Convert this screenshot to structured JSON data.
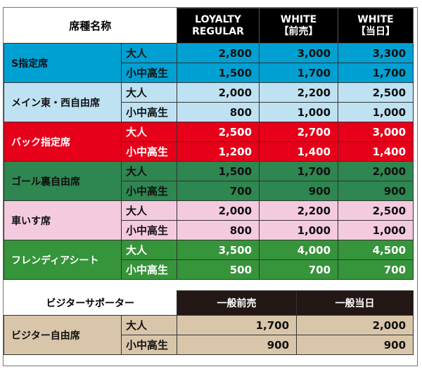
{
  "main_table": {
    "header": {
      "seat_name": "席種名称",
      "columns": [
        "LOYALTY\nREGULAR",
        "WHITE\n【前売】",
        "WHITE\n【当日】"
      ]
    },
    "rows": [
      {
        "seat": "S指定席",
        "bg": "#00a0d2",
        "text": "#111",
        "prices": [
          {
            "age": "大人",
            "values": [
              "2,800",
              "3,000",
              "3,300"
            ]
          },
          {
            "age": "小中高生",
            "values": [
              "1,500",
              "1,700",
              "1,700"
            ]
          }
        ]
      },
      {
        "seat": "メイン東・西自由席",
        "bg": "#bfe2f3",
        "text": "#111",
        "prices": [
          {
            "age": "大人",
            "values": [
              "2,000",
              "2,200",
              "2,500"
            ]
          },
          {
            "age": "小中高生",
            "values": [
              "800",
              "1,000",
              "1,000"
            ]
          }
        ]
      },
      {
        "seat": "バック指定席",
        "bg": "#e60019",
        "text": "#ffffff",
        "prices": [
          {
            "age": "大人",
            "values": [
              "2,500",
              "2,700",
              "3,000"
            ]
          },
          {
            "age": "小中高生",
            "values": [
              "1,200",
              "1,400",
              "1,400"
            ]
          }
        ]
      },
      {
        "seat": "ゴール裏自由席",
        "bg": "#2e8650",
        "text": "#111",
        "prices": [
          {
            "age": "大人",
            "values": [
              "1,500",
              "1,700",
              "2,000"
            ]
          },
          {
            "age": "小中高生",
            "values": [
              "700",
              "900",
              "900"
            ]
          }
        ]
      },
      {
        "seat": "車いす席",
        "bg": "#f4cadf",
        "text": "#111",
        "prices": [
          {
            "age": "大人",
            "values": [
              "2,000",
              "2,200",
              "2,500"
            ]
          },
          {
            "age": "小中高生",
            "values": [
              "800",
              "1,000",
              "1,000"
            ]
          }
        ]
      },
      {
        "seat": "フレンディアシート",
        "bg": "#36943a",
        "text": "#ffffff",
        "prices": [
          {
            "age": "大人",
            "values": [
              "3,500",
              "4,000",
              "4,500"
            ]
          },
          {
            "age": "小中高生",
            "values": [
              "500",
              "700",
              "700"
            ]
          }
        ]
      }
    ]
  },
  "visitor_table": {
    "header": {
      "seat_name": "ビジターサポーター",
      "columns": [
        "一般前売",
        "一般当日"
      ]
    },
    "row": {
      "seat": "ビジター自由席",
      "bg": "#d9c6aa",
      "prices": [
        {
          "age": "大人",
          "values": [
            "1,700",
            "2,000"
          ]
        },
        {
          "age": "小中高生",
          "values": [
            "900",
            "900"
          ]
        }
      ]
    }
  }
}
